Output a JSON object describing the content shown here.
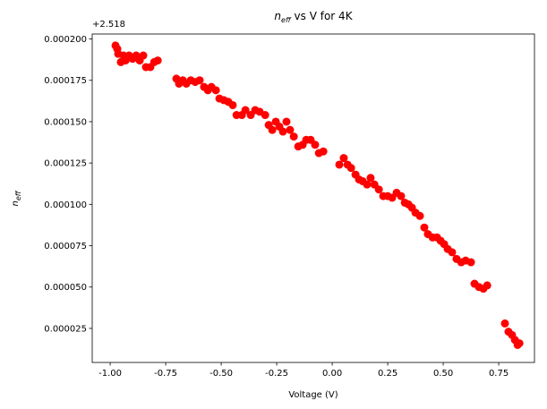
{
  "chart_data": {
    "type": "scatter",
    "title": [
      "n",
      "eff",
      " vs V for 4K"
    ],
    "xlabel": "Voltage (V)",
    "ylabel": [
      "n",
      "eff"
    ],
    "y_offset": "+2.518",
    "color": "#ff0000",
    "xlim": [
      -1.081,
      0.911
    ],
    "ylim": [
      4.4e-06,
      0.000203
    ],
    "xticks": [
      {
        "value": -1,
        "label": "-1.00"
      },
      -0.75,
      {
        "value": -0.5,
        "label": "-0.50"
      },
      -0.25,
      {
        "value": 0,
        "label": "0.00"
      },
      0.25,
      {
        "value": 0.5,
        "label": "0.50"
      },
      0.75
    ],
    "yticks": [
      2.5e-05,
      {
        "value": 5e-05,
        "label": "0.000050"
      },
      7.5e-05,
      {
        "value": 0.0001,
        "label": "0.000100"
      },
      0.000125,
      {
        "value": 0.00015,
        "label": "0.000150"
      },
      0.000175,
      {
        "value": 0.0002,
        "label": "0.000200"
      }
    ],
    "x": [
      -0.976,
      -0.968,
      -0.964,
      -0.952,
      -0.94,
      -0.931,
      -0.915,
      -0.899,
      -0.883,
      -0.867,
      -0.851,
      -0.839,
      -0.819,
      -0.802,
      -0.786,
      -0.702,
      -0.69,
      -0.673,
      -0.657,
      -0.637,
      -0.617,
      -0.597,
      -0.577,
      -0.56,
      -0.544,
      -0.524,
      -0.508,
      -0.488,
      -0.468,
      -0.448,
      -0.431,
      -0.407,
      -0.391,
      -0.367,
      -0.347,
      -0.327,
      -0.302,
      -0.286,
      -0.27,
      -0.254,
      -0.238,
      -0.222,
      -0.206,
      -0.19,
      -0.173,
      -0.153,
      -0.133,
      -0.117,
      -0.097,
      -0.077,
      -0.06,
      -0.04,
      0.032,
      0.052,
      0.069,
      0.085,
      0.105,
      0.121,
      0.137,
      0.157,
      0.173,
      0.19,
      0.21,
      0.23,
      0.25,
      0.27,
      0.29,
      0.31,
      0.327,
      0.343,
      0.359,
      0.375,
      0.395,
      0.415,
      0.431,
      0.452,
      0.472,
      0.488,
      0.504,
      0.52,
      0.54,
      0.56,
      0.581,
      0.601,
      0.625,
      0.641,
      0.661,
      0.681,
      0.698,
      0.778,
      0.794,
      0.81,
      0.823,
      0.835,
      0.843
    ],
    "values": [
      0.000196,
      0.000194,
      0.000191,
      0.000186,
      0.00019,
      0.000187,
      0.00019,
      0.000188,
      0.00019,
      0.000187,
      0.00019,
      0.000183,
      0.000183,
      0.000186,
      0.000187,
      0.000176,
      0.000173,
      0.000175,
      0.000173,
      0.000175,
      0.000174,
      0.000175,
      0.000171,
      0.000169,
      0.000171,
      0.000169,
      0.000164,
      0.000163,
      0.000162,
      0.00016,
      0.000154,
      0.000154,
      0.000157,
      0.000154,
      0.000157,
      0.000156,
      0.000154,
      0.000148,
      0.000145,
      0.00015,
      0.000147,
      0.000144,
      0.00015,
      0.000145,
      0.000141,
      0.000135,
      0.000136,
      0.000139,
      0.000139,
      0.000136,
      0.000131,
      0.000132,
      0.000124,
      0.000128,
      0.000124,
      0.000122,
      0.000118,
      0.000115,
      0.000114,
      0.000112,
      0.000116,
      0.000112,
      0.000109,
      0.000105,
      0.000105,
      0.000104,
      0.000107,
      0.000105,
      0.000101,
      0.0001,
      9.8e-05,
      9.5e-05,
      9.3e-05,
      8.6e-05,
      8.2e-05,
      8e-05,
      8e-05,
      7.8e-05,
      7.6e-05,
      7.3e-05,
      7.1e-05,
      6.7e-05,
      6.5e-05,
      6.6e-05,
      6.5e-05,
      5.2e-05,
      5e-05,
      4.9e-05,
      5.1e-05,
      2.8e-05,
      2.3e-05,
      2.1e-05,
      1.8e-05,
      1.5e-05,
      1.6e-05
    ]
  }
}
